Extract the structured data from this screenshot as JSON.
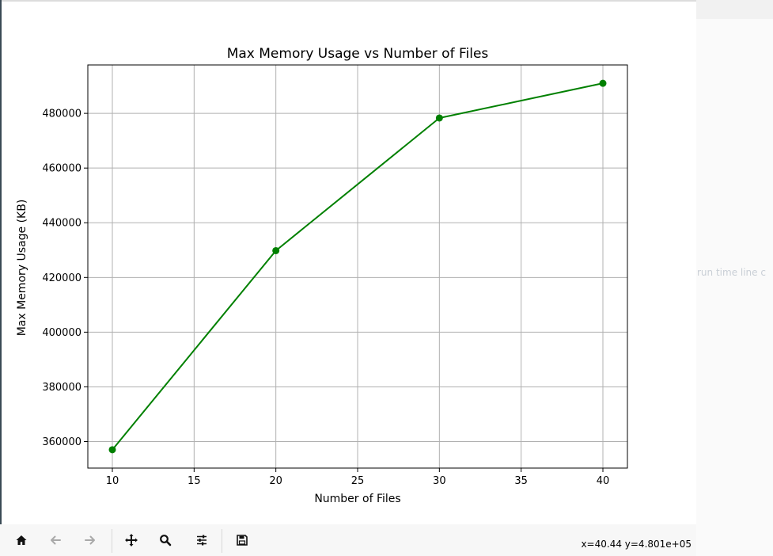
{
  "window": {
    "status_coords": "x=40.44 y=4.801e+05"
  },
  "toolbar": {
    "buttons": [
      {
        "name": "home-button",
        "icon": "home-icon"
      },
      {
        "name": "back-button",
        "icon": "arrow-left-icon"
      },
      {
        "name": "forward-button",
        "icon": "arrow-right-icon"
      },
      {
        "name": "pan-button",
        "icon": "move-icon"
      },
      {
        "name": "zoom-button",
        "icon": "magnifier-icon"
      },
      {
        "name": "configure-subplots-button",
        "icon": "sliders-icon"
      },
      {
        "name": "save-button",
        "icon": "floppy-disk-icon"
      }
    ]
  },
  "background_window": {
    "text": "run time line c"
  },
  "chart_data": {
    "type": "line",
    "title": "Max Memory Usage vs Number of Files",
    "xlabel": "Number of Files",
    "ylabel": "Max Memory Usage (KB)",
    "x": [
      10,
      20,
      30,
      40
    ],
    "series": [
      {
        "values": [
          357000,
          429800,
          478300,
          491000
        ],
        "color": "#008000",
        "marker": "circle"
      }
    ],
    "xlim": [
      8.5,
      41.5
    ],
    "ylim": [
      350300,
      497700
    ],
    "xticks": [
      "10",
      "15",
      "20",
      "25",
      "30",
      "35",
      "40"
    ],
    "yticks": [
      "360000",
      "380000",
      "400000",
      "420000",
      "440000",
      "460000",
      "480000"
    ],
    "grid": true,
    "legend": "none"
  }
}
